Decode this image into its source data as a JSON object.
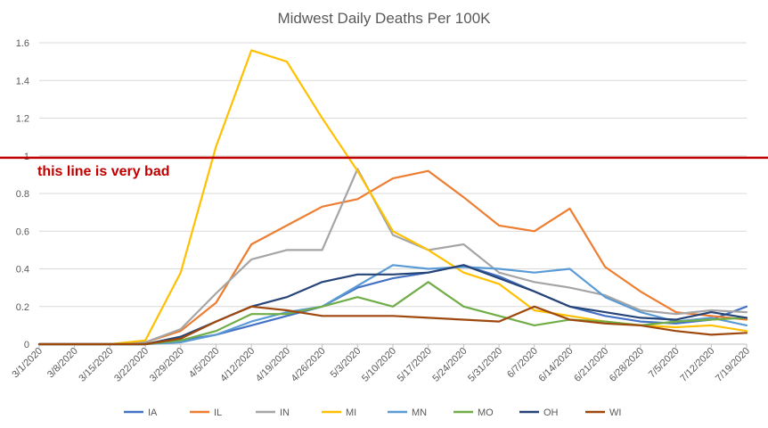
{
  "chart_data": {
    "type": "line",
    "title": "Midwest Daily Deaths Per 100K",
    "xlabel": "",
    "ylabel": "",
    "ylim": [
      0,
      1.6
    ],
    "yticks": [
      "0",
      "0.2",
      "0.4",
      "0.6",
      "0.8",
      "1",
      "1.2",
      "1.4",
      "1.6"
    ],
    "x": [
      "3/1/2020",
      "3/8/2020",
      "3/15/2020",
      "3/22/2020",
      "3/29/2020",
      "4/5/2020",
      "4/12/2020",
      "4/19/2020",
      "4/26/2020",
      "5/3/2020",
      "5/10/2020",
      "5/17/2020",
      "5/24/2020",
      "5/31/2020",
      "6/7/2020",
      "6/14/2020",
      "6/21/2020",
      "6/28/2020",
      "7/5/2020",
      "7/12/2020",
      "7/19/2020"
    ],
    "grid": true,
    "legend": "bottom",
    "reference_line": {
      "value": 0.99,
      "label": "this line is very bad",
      "color": "#c00000"
    },
    "series": [
      {
        "name": "IA",
        "color": "#4472c4",
        "values": [
          0,
          0,
          0,
          0,
          0.02,
          0.05,
          0.1,
          0.15,
          0.2,
          0.3,
          0.35,
          0.38,
          0.42,
          0.36,
          0.28,
          0.2,
          0.15,
          0.12,
          0.11,
          0.13,
          0.2
        ]
      },
      {
        "name": "IL",
        "color": "#ed7d31",
        "values": [
          0,
          0,
          0,
          0.01,
          0.07,
          0.22,
          0.53,
          0.63,
          0.73,
          0.77,
          0.88,
          0.92,
          0.78,
          0.63,
          0.6,
          0.72,
          0.41,
          0.28,
          0.17,
          0.15,
          0.13
        ]
      },
      {
        "name": "IN",
        "color": "#a5a5a5",
        "values": [
          0,
          0,
          0,
          0.01,
          0.08,
          0.27,
          0.45,
          0.5,
          0.5,
          0.93,
          0.58,
          0.5,
          0.53,
          0.38,
          0.33,
          0.3,
          0.26,
          0.18,
          0.16,
          0.18,
          0.17
        ]
      },
      {
        "name": "MI",
        "color": "#ffc000",
        "values": [
          0,
          0,
          0,
          0.02,
          0.38,
          1.05,
          1.56,
          1.5,
          1.2,
          0.92,
          0.6,
          0.5,
          0.38,
          0.32,
          0.18,
          0.15,
          0.12,
          0.1,
          0.09,
          0.1,
          0.07
        ]
      },
      {
        "name": "MN",
        "color": "#5b9bd5",
        "values": [
          0,
          0,
          0,
          0,
          0.01,
          0.05,
          0.12,
          0.17,
          0.2,
          0.31,
          0.42,
          0.4,
          0.41,
          0.4,
          0.38,
          0.4,
          0.25,
          0.17,
          0.12,
          0.14,
          0.1
        ]
      },
      {
        "name": "MO",
        "color": "#70ad47",
        "values": [
          0,
          0,
          0,
          0,
          0.02,
          0.07,
          0.16,
          0.16,
          0.2,
          0.25,
          0.2,
          0.33,
          0.2,
          0.15,
          0.1,
          0.13,
          0.12,
          0.1,
          0.12,
          0.13,
          0.14
        ]
      },
      {
        "name": "OH",
        "color": "#264478",
        "values": [
          0,
          0,
          0,
          0,
          0.04,
          0.12,
          0.2,
          0.25,
          0.33,
          0.37,
          0.37,
          0.38,
          0.42,
          0.35,
          0.28,
          0.2,
          0.17,
          0.14,
          0.13,
          0.17,
          0.14
        ]
      },
      {
        "name": "WI",
        "color": "#9e480e",
        "values": [
          0,
          0,
          0,
          0,
          0.03,
          0.12,
          0.2,
          0.18,
          0.15,
          0.15,
          0.15,
          0.14,
          0.13,
          0.12,
          0.2,
          0.13,
          0.11,
          0.1,
          0.07,
          0.05,
          0.06
        ]
      }
    ]
  }
}
